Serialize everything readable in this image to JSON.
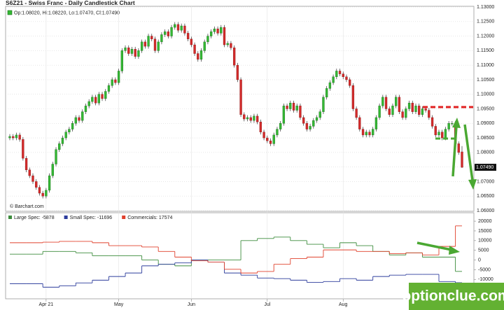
{
  "chart_data": [
    {
      "type": "candlestick",
      "title": "S6Z21 - Swiss Franc - Daily Candlestick Chart",
      "status": "Op:1.08020, Hi:1.08220, Lo:1.07470, Cl:1.07490",
      "source": "© Barchart.com",
      "up_color": "#33b833",
      "down_color": "#d42a2a",
      "xlim": [
        0,
        137
      ],
      "xticks": [
        {
          "value": 11,
          "label": "Apr 21"
        },
        {
          "value": 33,
          "label": "May"
        },
        {
          "value": 55,
          "label": "Jun"
        },
        {
          "value": 78,
          "label": "Jul"
        },
        {
          "value": 101,
          "label": "Aug"
        }
      ],
      "ylim": [
        1.06,
        1.13
      ],
      "yticks": [
        {
          "value": 1.06,
          "label": "1.06000"
        },
        {
          "value": 1.065,
          "label": "1.06500"
        },
        {
          "value": 1.07,
          "label": "1.07000"
        },
        {
          "value": 1.075,
          "label": "1.07500"
        },
        {
          "value": 1.08,
          "label": "1.08000"
        },
        {
          "value": 1.085,
          "label": "1.08500"
        },
        {
          "value": 1.09,
          "label": "1.09000"
        },
        {
          "value": 1.095,
          "label": "1.09500"
        },
        {
          "value": 1.1,
          "label": "1.10000"
        },
        {
          "value": 1.105,
          "label": "1.10500"
        },
        {
          "value": 1.11,
          "label": "1.11000"
        },
        {
          "value": 1.115,
          "label": "1.11500"
        },
        {
          "value": 1.12,
          "label": "1.12000"
        },
        {
          "value": 1.125,
          "label": "1.12500"
        },
        {
          "value": 1.13,
          "label": "1.13000"
        }
      ],
      "last_price": {
        "value": 1.0749,
        "label": "1.07490"
      },
      "grid": true,
      "ohlc": [
        [
          1.085,
          1.0863,
          1.0842,
          1.0855
        ],
        [
          1.0855,
          1.0863,
          1.0842,
          1.085
        ],
        [
          1.085,
          1.0868,
          1.0842,
          1.086
        ],
        [
          1.086,
          1.0868,
          1.0837,
          1.0845
        ],
        [
          1.0845,
          1.0853,
          1.0772,
          1.078
        ],
        [
          1.078,
          1.0788,
          1.0732,
          1.074
        ],
        [
          1.074,
          1.0748,
          1.0712,
          1.072
        ],
        [
          1.072,
          1.0728,
          1.0692,
          1.07
        ],
        [
          1.07,
          1.0708,
          1.0672,
          1.068
        ],
        [
          1.068,
          1.0688,
          1.0652,
          1.066
        ],
        [
          1.066,
          1.0668,
          1.0642,
          1.065
        ],
        [
          1.065,
          1.0678,
          1.0642,
          1.067
        ],
        [
          1.067,
          1.0728,
          1.0662,
          1.072
        ],
        [
          1.072,
          1.0768,
          1.0712,
          1.076
        ],
        [
          1.076,
          1.0818,
          1.0752,
          1.081
        ],
        [
          1.081,
          1.0838,
          1.0802,
          1.083
        ],
        [
          1.083,
          1.0858,
          1.0822,
          1.085
        ],
        [
          1.085,
          1.0878,
          1.0842,
          1.087
        ],
        [
          1.087,
          1.0888,
          1.0862,
          1.088
        ],
        [
          1.088,
          1.0908,
          1.0872,
          1.09
        ],
        [
          1.09,
          1.0928,
          1.0892,
          1.092
        ],
        [
          1.092,
          1.0928,
          1.0902,
          1.091
        ],
        [
          1.091,
          1.0948,
          1.0902,
          1.094
        ],
        [
          1.094,
          1.0968,
          1.0932,
          1.096
        ],
        [
          1.096,
          1.0983,
          1.0952,
          1.0975
        ],
        [
          1.0975,
          1.0998,
          1.0967,
          1.099
        ],
        [
          1.099,
          1.0998,
          1.0962,
          1.097
        ],
        [
          1.097,
          1.1008,
          1.0962,
          1.1
        ],
        [
          1.1,
          1.1008,
          1.0977,
          1.0985
        ],
        [
          1.0985,
          1.1018,
          1.0977,
          1.101
        ],
        [
          1.101,
          1.1038,
          1.1002,
          1.103
        ],
        [
          1.103,
          1.1058,
          1.1022,
          1.105
        ],
        [
          1.105,
          1.1058,
          1.1032,
          1.104
        ],
        [
          1.104,
          1.1088,
          1.1032,
          1.108
        ],
        [
          1.108,
          1.1158,
          1.1072,
          1.115
        ],
        [
          1.115,
          1.1168,
          1.1142,
          1.116
        ],
        [
          1.116,
          1.1168,
          1.1132,
          1.114
        ],
        [
          1.114,
          1.1163,
          1.1132,
          1.1155
        ],
        [
          1.1155,
          1.1163,
          1.1122,
          1.113
        ],
        [
          1.113,
          1.1158,
          1.1122,
          1.115
        ],
        [
          1.115,
          1.1188,
          1.1142,
          1.118
        ],
        [
          1.118,
          1.1188,
          1.1157,
          1.1165
        ],
        [
          1.1165,
          1.1208,
          1.1157,
          1.12
        ],
        [
          1.12,
          1.1208,
          1.1182,
          1.119
        ],
        [
          1.119,
          1.1198,
          1.1142,
          1.115
        ],
        [
          1.115,
          1.1188,
          1.1142,
          1.118
        ],
        [
          1.118,
          1.1213,
          1.1172,
          1.1205
        ],
        [
          1.1205,
          1.1223,
          1.1197,
          1.1215
        ],
        [
          1.1215,
          1.1223,
          1.1192,
          1.12
        ],
        [
          1.12,
          1.1238,
          1.1192,
          1.123
        ],
        [
          1.123,
          1.1248,
          1.1222,
          1.124
        ],
        [
          1.124,
          1.1248,
          1.1212,
          1.122
        ],
        [
          1.122,
          1.1243,
          1.1212,
          1.1235
        ],
        [
          1.1235,
          1.1243,
          1.1202,
          1.121
        ],
        [
          1.121,
          1.1218,
          1.1182,
          1.119
        ],
        [
          1.119,
          1.1198,
          1.1162,
          1.117
        ],
        [
          1.117,
          1.1178,
          1.1132,
          1.114
        ],
        [
          1.114,
          1.1148,
          1.1112,
          1.112
        ],
        [
          1.112,
          1.1158,
          1.1112,
          1.115
        ],
        [
          1.115,
          1.1188,
          1.1142,
          1.118
        ],
        [
          1.118,
          1.1208,
          1.1172,
          1.12
        ],
        [
          1.12,
          1.1223,
          1.1192,
          1.1215
        ],
        [
          1.1215,
          1.1233,
          1.1207,
          1.1225
        ],
        [
          1.1225,
          1.1233,
          1.1202,
          1.121
        ],
        [
          1.121,
          1.1238,
          1.1202,
          1.123
        ],
        [
          1.123,
          1.1238,
          1.1162,
          1.117
        ],
        [
          1.117,
          1.1183,
          1.1162,
          1.1175
        ],
        [
          1.1175,
          1.1183,
          1.1152,
          1.116
        ],
        [
          1.116,
          1.1168,
          1.1092,
          1.11
        ],
        [
          1.11,
          1.1108,
          1.1042,
          1.105
        ],
        [
          1.105,
          1.1058,
          1.0922,
          1.093
        ],
        [
          1.093,
          1.0938,
          1.0907,
          1.0915
        ],
        [
          1.0915,
          1.0928,
          1.0907,
          1.092
        ],
        [
          1.092,
          1.0928,
          1.0902,
          1.091
        ],
        [
          1.091,
          1.0933,
          1.0902,
          1.0925
        ],
        [
          1.0925,
          1.0933,
          1.0897,
          1.0905
        ],
        [
          1.0905,
          1.0913,
          1.0862,
          1.087
        ],
        [
          1.087,
          1.0878,
          1.0842,
          1.085
        ],
        [
          1.085,
          1.0858,
          1.0832,
          1.084
        ],
        [
          1.084,
          1.0848,
          1.0822,
          1.083
        ],
        [
          1.083,
          1.0868,
          1.0822,
          1.086
        ],
        [
          1.086,
          1.0888,
          1.0852,
          1.088
        ],
        [
          1.088,
          1.0908,
          1.0872,
          1.09
        ],
        [
          1.09,
          1.0968,
          1.0892,
          1.096
        ],
        [
          1.096,
          1.0968,
          1.0942,
          1.095
        ],
        [
          1.095,
          1.0978,
          1.0942,
          1.097
        ],
        [
          1.097,
          1.0978,
          1.0937,
          1.0945
        ],
        [
          1.0945,
          1.0968,
          1.0937,
          1.096
        ],
        [
          1.096,
          1.0968,
          1.0912,
          1.092
        ],
        [
          1.092,
          1.0928,
          1.0892,
          1.09
        ],
        [
          1.09,
          1.0908,
          1.0872,
          1.088
        ],
        [
          1.088,
          1.0898,
          1.0872,
          1.089
        ],
        [
          1.089,
          1.0918,
          1.0882,
          1.091
        ],
        [
          1.091,
          1.0928,
          1.0902,
          1.092
        ],
        [
          1.092,
          1.0948,
          1.0912,
          1.094
        ],
        [
          1.094,
          1.0998,
          1.0932,
          1.099
        ],
        [
          1.099,
          1.1028,
          1.0982,
          1.102
        ],
        [
          1.102,
          1.1048,
          1.1012,
          1.104
        ],
        [
          1.104,
          1.1068,
          1.1032,
          1.106
        ],
        [
          1.106,
          1.1088,
          1.1052,
          1.108
        ],
        [
          1.108,
          1.1088,
          1.1062,
          1.107
        ],
        [
          1.107,
          1.1078,
          1.1052,
          1.106
        ],
        [
          1.106,
          1.1068,
          1.1042,
          1.105
        ],
        [
          1.105,
          1.1058,
          1.1022,
          1.103
        ],
        [
          1.103,
          1.1038,
          1.0942,
          1.095
        ],
        [
          1.095,
          1.0958,
          1.0912,
          1.092
        ],
        [
          1.092,
          1.0928,
          1.0872,
          1.088
        ],
        [
          1.088,
          1.0888,
          1.0852,
          1.086
        ],
        [
          1.086,
          1.0878,
          1.0852,
          1.087
        ],
        [
          1.087,
          1.0878,
          1.0852,
          1.086
        ],
        [
          1.086,
          1.0888,
          1.0852,
          1.088
        ],
        [
          1.088,
          1.0928,
          1.0872,
          1.092
        ],
        [
          1.092,
          1.0968,
          1.0912,
          1.096
        ],
        [
          1.096,
          1.0998,
          1.0952,
          1.099
        ],
        [
          1.099,
          1.0998,
          1.0942,
          1.095
        ],
        [
          1.095,
          1.0958,
          1.0922,
          1.093
        ],
        [
          1.093,
          1.0968,
          1.0922,
          1.096
        ],
        [
          1.096,
          1.0998,
          1.0952,
          1.099
        ],
        [
          1.099,
          1.0998,
          1.0932,
          1.094
        ],
        [
          1.094,
          1.0948,
          1.0912,
          1.092
        ],
        [
          1.092,
          1.0958,
          1.0912,
          1.095
        ],
        [
          1.095,
          1.0978,
          1.0942,
          1.097
        ],
        [
          1.097,
          1.0978,
          1.0932,
          1.094
        ],
        [
          1.094,
          1.0968,
          1.0932,
          1.096
        ],
        [
          1.096,
          1.0968,
          1.0922,
          1.093
        ],
        [
          1.093,
          1.0958,
          1.0922,
          1.095
        ],
        [
          1.095,
          1.0958,
          1.0937,
          1.0945
        ],
        [
          1.0945,
          1.0953,
          1.0912,
          1.092
        ],
        [
          1.092,
          1.0928,
          1.0882,
          1.089
        ],
        [
          1.089,
          1.0898,
          1.0852,
          1.086
        ],
        [
          1.086,
          1.0878,
          1.0852,
          1.087
        ],
        [
          1.087,
          1.0878,
          1.0842,
          1.085
        ],
        [
          1.085,
          1.0888,
          1.0842,
          1.088
        ],
        [
          1.088,
          1.0908,
          1.0872,
          1.09
        ],
        [
          1.09,
          1.0908,
          1.0892,
          1.09
        ],
        [
          1.09,
          1.0908,
          1.0822,
          1.083
        ],
        [
          1.083,
          1.0838,
          1.0792,
          1.08
        ],
        [
          1.0802,
          1.0822,
          1.0747,
          1.0749
        ]
      ]
    },
    {
      "type": "line",
      "step": true,
      "xlim": [
        0,
        137
      ],
      "x": [
        0,
        5,
        10,
        15,
        20,
        25,
        30,
        35,
        40,
        45,
        50,
        55,
        60,
        65,
        70,
        75,
        80,
        85,
        90,
        95,
        100,
        105,
        110,
        115,
        120,
        125,
        130,
        135
      ],
      "ylim": [
        -20000,
        24000
      ],
      "yticks": [
        -10000,
        -5000,
        0,
        5000,
        10000,
        15000,
        20000
      ],
      "series": [
        {
          "name": "Large Spec: -5878",
          "color": "#3c8c3c",
          "values": [
            3000,
            3000,
            4400,
            4400,
            3700,
            2200,
            2200,
            2200,
            0,
            -2200,
            -3000,
            0,
            0,
            0,
            10000,
            11100,
            11800,
            10000,
            8100,
            6300,
            8900,
            7400,
            4400,
            2600,
            3700,
            1500,
            1500,
            -5878
          ]
        },
        {
          "name": "Small Spec: -11696",
          "color": "#2c3c9c",
          "values": [
            -12200,
            -12200,
            -14000,
            -13300,
            -11800,
            -10400,
            -8500,
            -6700,
            -3000,
            -2200,
            -1500,
            0,
            -1100,
            -6700,
            -7800,
            -9300,
            -9600,
            -10400,
            -11500,
            -11100,
            -9600,
            -10400,
            -8500,
            -7800,
            -7400,
            -7400,
            -11100,
            -11696
          ]
        },
        {
          "name": "Commercials: 17574",
          "color": "#e0402c",
          "values": [
            8900,
            8900,
            9200,
            9600,
            9600,
            8900,
            7400,
            7400,
            6700,
            4400,
            1500,
            -400,
            -1100,
            -4800,
            -6700,
            -5900,
            -2200,
            700,
            1500,
            5200,
            5200,
            4400,
            4400,
            3300,
            3700,
            2600,
            7000,
            17574
          ]
        }
      ]
    }
  ],
  "watermark": "optionclue.com"
}
